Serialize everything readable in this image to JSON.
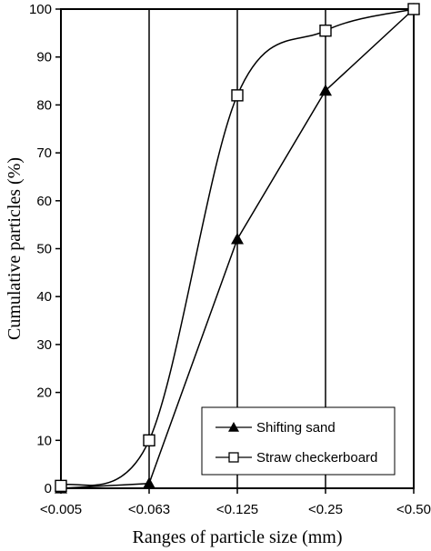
{
  "chart_data": {
    "type": "line",
    "xlabel": "Ranges of particle size (mm)",
    "ylabel": "Cumulative particles (%)",
    "ylim": [
      0,
      100
    ],
    "yticks": [
      "0",
      "10",
      "20",
      "30",
      "40",
      "50",
      "60",
      "70",
      "80",
      "90",
      "100"
    ],
    "categories": [
      "<0.005",
      "<0.063",
      "<0.125",
      "<0.25",
      "<0.50"
    ],
    "grid": "vertical lines at each category",
    "legend_position": "bottom-right",
    "series": [
      {
        "name": "Shifting sand",
        "marker": "filled-triangle",
        "smooth": false,
        "values": [
          0,
          1,
          52,
          83,
          100
        ]
      },
      {
        "name": "Straw checkerboard",
        "marker": "open-square",
        "smooth": true,
        "values": [
          0.5,
          10,
          82,
          95.5,
          100
        ]
      }
    ]
  }
}
